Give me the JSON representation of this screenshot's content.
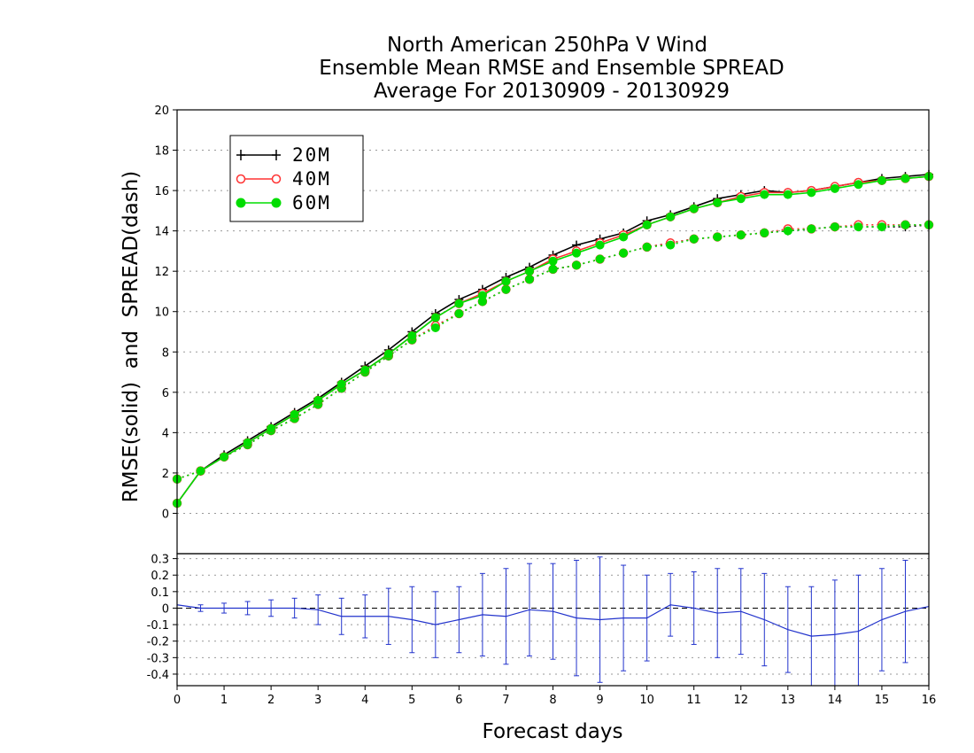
{
  "title_lines": [
    "North American 250hPa V Wind",
    "Ensemble Mean RMSE and Ensemble SPREAD",
    "Average For 20130909 - 20130929"
  ],
  "colors": {
    "20M": "#000000",
    "40M": "#ff3333",
    "60M": "#00dd00",
    "diff": "#2233cc"
  },
  "chart_data": [
    {
      "type": "line",
      "title": "North American 250hPa V Wind / Ensemble Mean RMSE and Ensemble SPREAD / Average For 20130909 - 20130929",
      "ylabel": "RMSE(solid)  and  SPREAD(dash)",
      "xlim": [
        0,
        16
      ],
      "ylim": [
        -2,
        20
      ],
      "yticks": [
        0,
        2,
        4,
        6,
        8,
        10,
        12,
        14,
        16,
        18,
        20
      ],
      "grid": true,
      "legend_position": "top-left",
      "legend": [
        "20M",
        "40M",
        "60M"
      ],
      "x": [
        0,
        0.5,
        1,
        1.5,
        2,
        2.5,
        3,
        3.5,
        4,
        4.5,
        5,
        5.5,
        6,
        6.5,
        7,
        7.5,
        8,
        8.5,
        9,
        9.5,
        10,
        10.5,
        11,
        11.5,
        12,
        12.5,
        13,
        13.5,
        14,
        14.5,
        15,
        15.5,
        16
      ],
      "series": [
        {
          "name": "20M",
          "style": "solid",
          "marker": "plus",
          "values": [
            0.5,
            2.1,
            2.9,
            3.6,
            4.3,
            5.0,
            5.7,
            6.5,
            7.3,
            8.1,
            9.0,
            9.9,
            10.6,
            11.1,
            11.7,
            12.2,
            12.8,
            13.3,
            13.6,
            13.9,
            14.5,
            14.8,
            15.2,
            15.6,
            15.8,
            16.0,
            15.9,
            16.0,
            16.2,
            16.4,
            16.6,
            16.7,
            16.8
          ]
        },
        {
          "name": "40M",
          "style": "solid",
          "marker": "circle-open",
          "values": [
            0.5,
            2.1,
            2.8,
            3.5,
            4.2,
            4.9,
            5.6,
            6.4,
            7.1,
            7.9,
            8.8,
            9.7,
            10.4,
            10.9,
            11.5,
            12.0,
            12.6,
            13.0,
            13.4,
            13.8,
            14.3,
            14.7,
            15.1,
            15.4,
            15.7,
            15.9,
            15.9,
            16.0,
            16.2,
            16.4,
            16.5,
            16.6,
            16.7
          ]
        },
        {
          "name": "60M",
          "style": "solid",
          "marker": "circle-filled",
          "values": [
            0.5,
            2.1,
            2.8,
            3.5,
            4.2,
            4.9,
            5.6,
            6.4,
            7.1,
            7.9,
            8.8,
            9.7,
            10.4,
            10.8,
            11.5,
            12.0,
            12.5,
            12.9,
            13.3,
            13.7,
            14.3,
            14.7,
            15.1,
            15.4,
            15.6,
            15.8,
            15.8,
            15.9,
            16.1,
            16.3,
            16.5,
            16.6,
            16.7
          ]
        },
        {
          "name": "20M",
          "style": "dash",
          "marker": "plus",
          "values": [
            1.7,
            2.1,
            2.8,
            3.4,
            4.1,
            4.7,
            5.4,
            6.2,
            7.0,
            7.8,
            8.6,
            9.3,
            9.9,
            10.5,
            11.1,
            11.6,
            12.1,
            12.3,
            12.6,
            12.9,
            13.2,
            13.4,
            13.6,
            13.7,
            13.8,
            13.9,
            14.0,
            14.1,
            14.2,
            14.2,
            14.2,
            14.2,
            14.3
          ]
        },
        {
          "name": "40M",
          "style": "dash",
          "marker": "circle-open",
          "values": [
            1.7,
            2.1,
            2.8,
            3.4,
            4.1,
            4.7,
            5.4,
            6.2,
            7.0,
            7.8,
            8.6,
            9.3,
            9.9,
            10.5,
            11.1,
            11.6,
            12.1,
            12.3,
            12.6,
            12.9,
            13.2,
            13.4,
            13.6,
            13.7,
            13.8,
            13.9,
            14.1,
            14.1,
            14.2,
            14.3,
            14.3,
            14.3,
            14.3
          ]
        },
        {
          "name": "60M",
          "style": "dash",
          "marker": "circle-filled",
          "values": [
            1.7,
            2.1,
            2.8,
            3.4,
            4.1,
            4.7,
            5.4,
            6.2,
            7.0,
            7.8,
            8.6,
            9.2,
            9.9,
            10.5,
            11.1,
            11.6,
            12.1,
            12.3,
            12.6,
            12.9,
            13.2,
            13.3,
            13.6,
            13.7,
            13.8,
            13.9,
            14.0,
            14.1,
            14.2,
            14.2,
            14.2,
            14.3,
            14.3
          ]
        }
      ]
    },
    {
      "type": "line",
      "xlabel": "Forecast days",
      "xlim": [
        0,
        16
      ],
      "xticks": [
        0,
        1,
        2,
        3,
        4,
        5,
        6,
        7,
        8,
        9,
        10,
        11,
        12,
        13,
        14,
        15,
        16
      ],
      "ylim": [
        -0.47,
        0.33
      ],
      "yticks": [
        -0.4,
        -0.3,
        -0.2,
        -0.1,
        0,
        0.1,
        0.2,
        0.3
      ],
      "ytick_labels": [
        "-0.4",
        "-0.3",
        "-0.2",
        "-0.1",
        "0",
        "0.1",
        "0.2",
        "0.3"
      ],
      "reference_line": 0,
      "grid": true,
      "x": [
        0,
        0.5,
        1,
        1.5,
        2,
        2.5,
        3,
        3.5,
        4,
        4.5,
        5,
        5.5,
        6,
        6.5,
        7,
        7.5,
        8,
        8.5,
        9,
        9.5,
        10,
        10.5,
        11,
        11.5,
        12,
        12.5,
        13,
        13.5,
        14,
        14.5,
        15,
        15.5,
        16
      ],
      "series": [
        {
          "name": "difference",
          "values": [
            0.02,
            0.0,
            0.0,
            0.0,
            0.0,
            0.0,
            -0.01,
            -0.05,
            -0.05,
            -0.05,
            -0.07,
            -0.1,
            -0.07,
            -0.04,
            -0.05,
            -0.01,
            -0.02,
            -0.06,
            -0.07,
            -0.06,
            -0.06,
            0.02,
            0.0,
            -0.03,
            -0.02,
            -0.07,
            -0.13,
            -0.17,
            -0.16,
            -0.14,
            -0.07,
            -0.02,
            0.01
          ],
          "error": [
            0.0,
            0.02,
            0.03,
            0.04,
            0.05,
            0.06,
            0.09,
            0.11,
            0.13,
            0.17,
            0.2,
            0.2,
            0.2,
            0.25,
            0.29,
            0.28,
            0.29,
            0.35,
            0.38,
            0.32,
            0.26,
            0.19,
            0.22,
            0.27,
            0.26,
            0.28,
            0.26,
            0.3,
            0.33,
            0.34,
            0.31,
            0.31,
            0.0
          ]
        }
      ]
    }
  ]
}
